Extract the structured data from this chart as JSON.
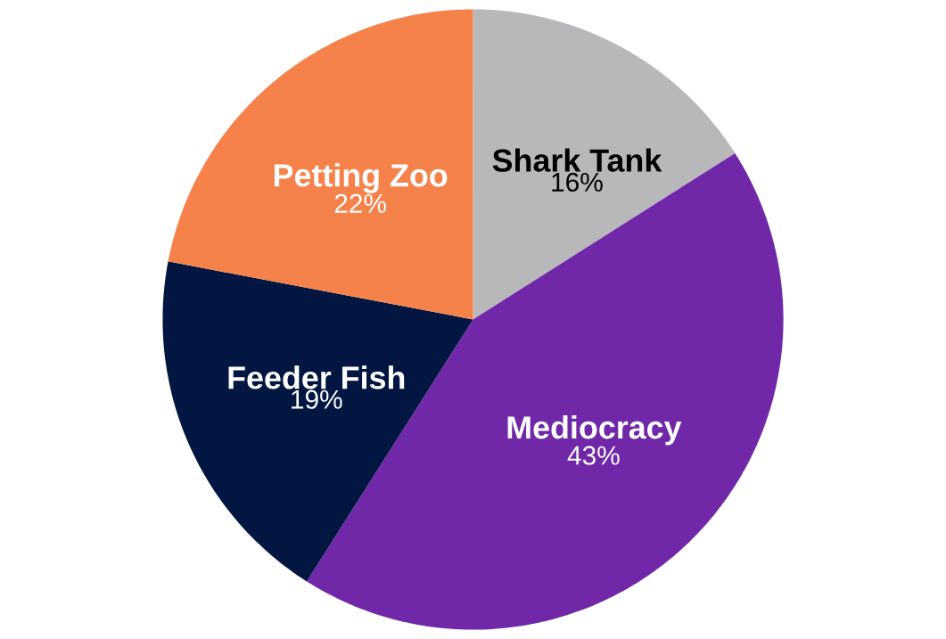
{
  "chart_data": {
    "type": "pie",
    "categories": [
      "Shark Tank",
      "Mediocracy",
      "Feeder Fish",
      "Petting Zoo"
    ],
    "values": [
      16,
      43,
      19,
      22
    ],
    "colors": [
      "#b8b8ba",
      "#7027a8",
      "#021641",
      "#f5824a"
    ],
    "value_labels": [
      "16%",
      "43%",
      "19%",
      "22%"
    ]
  }
}
